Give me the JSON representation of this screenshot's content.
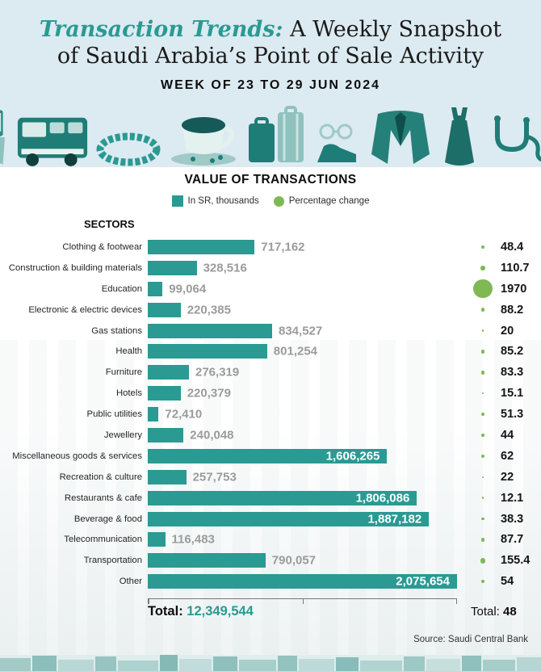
{
  "header": {
    "title_accent": "Transaction Trends:",
    "title_rest": " A Weekly Snapshot",
    "title_line2": "of Saudi Arabia’s Point of Sale Activity",
    "week_label": "WEEK OF 23 TO 29 JUN 2024",
    "icon_names": [
      "hand-phone-icon",
      "bus-icon",
      "bracelet-icon",
      "coffee-cup-icon",
      "luggage-icon",
      "shoes-icon",
      "jacket-icon",
      "dress-icon",
      "stethoscope-icon"
    ]
  },
  "legend": {
    "title": "VALUE OF TRANSACTIONS",
    "items": [
      {
        "label": "In SR, thousands",
        "shape": "square",
        "color": "#2A9A93"
      },
      {
        "label": "Percentage change",
        "shape": "circle",
        "color": "#7FB953"
      }
    ]
  },
  "sectors_label": "SECTORS",
  "chart_data": {
    "type": "bar",
    "orientation": "horizontal",
    "categories": [
      "Clothing & footwear",
      "Construction & building materials",
      "Education",
      "Electronic & electric devices",
      "Gas stations",
      "Health",
      "Furniture",
      "Hotels",
      "Public utilities",
      "Jewellery",
      "Miscellaneous goods & services",
      "Recreation & culture",
      "Restaurants & cafe",
      "Beverage & food",
      "Telecommunication",
      "Transportation",
      "Other"
    ],
    "series": [
      {
        "name": "Value of transactions (SR, thousands)",
        "values": [
          717162,
          328516,
          99064,
          220385,
          834527,
          801254,
          276319,
          220379,
          72410,
          240048,
          1606265,
          257753,
          1806086,
          1887182,
          116483,
          790057,
          2075654
        ]
      },
      {
        "name": "Percentage change",
        "values": [
          48.4,
          110.7,
          1970,
          88.2,
          20,
          85.2,
          83.3,
          15.1,
          51.3,
          44,
          62,
          22,
          12.1,
          38.3,
          87.7,
          155.4,
          54
        ]
      }
    ],
    "value_labels": [
      "717,162",
      "328,516",
      "99,064",
      "220,385",
      "834,527",
      "801,254",
      "276,319",
      "220,379",
      "72,410",
      "240,048",
      "1,606,265",
      "257,753",
      "1,806,086",
      "1,887,182",
      "116,483",
      "790,057",
      "2,075,654"
    ],
    "pct_labels": [
      "48.4",
      "110.7",
      "1970",
      "88.2",
      "20",
      "85.2",
      "83.3",
      "15.1",
      "51.3",
      "44",
      "62",
      "22",
      "12.1",
      "38.3",
      "87.7",
      "155.4",
      "54"
    ],
    "xlim": [
      0,
      2075654
    ],
    "grid": false,
    "legend_position": "top",
    "bar_color": "#2A9A93",
    "dot_color": "#7FB953",
    "totals": {
      "value_prefix": "Total:",
      "value": "12,349,544",
      "pct_prefix": "Total:",
      "pct": "48"
    }
  },
  "source": "Source: Saudi Central Bank",
  "colors": {
    "accent_teal": "#2A9A93",
    "accent_green": "#7FB953",
    "header_bg": "#DCEAF1",
    "value_gray": "#9B9B9B"
  }
}
